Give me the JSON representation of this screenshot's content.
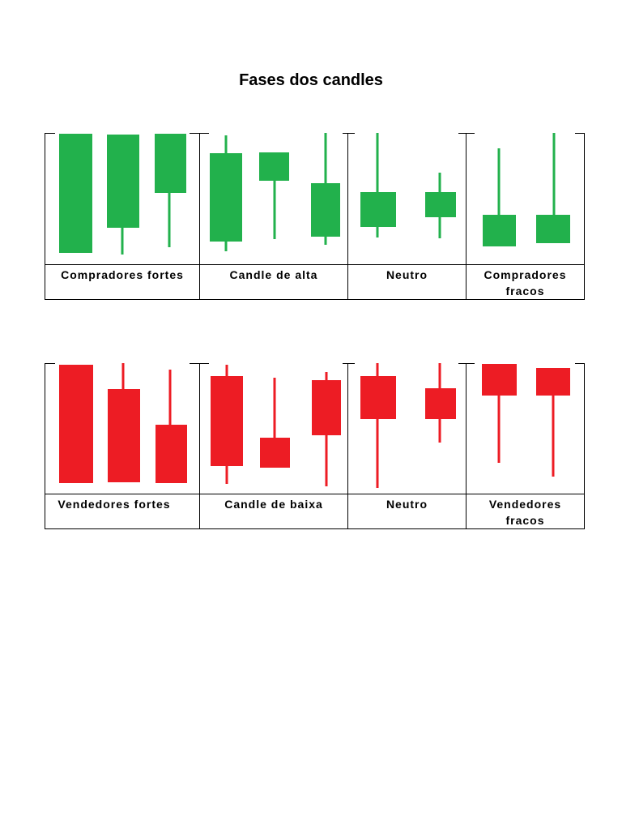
{
  "title": "Fases dos candles",
  "tables": [
    {
      "labels": [
        "Compradores fortes",
        "Candle de alta",
        "Neutro",
        "Compradores fracos"
      ]
    },
    {
      "labels": [
        "Vendedores fortes",
        "Candle de baixa",
        "Neutro",
        "Vendedores fracos"
      ]
    }
  ]
}
